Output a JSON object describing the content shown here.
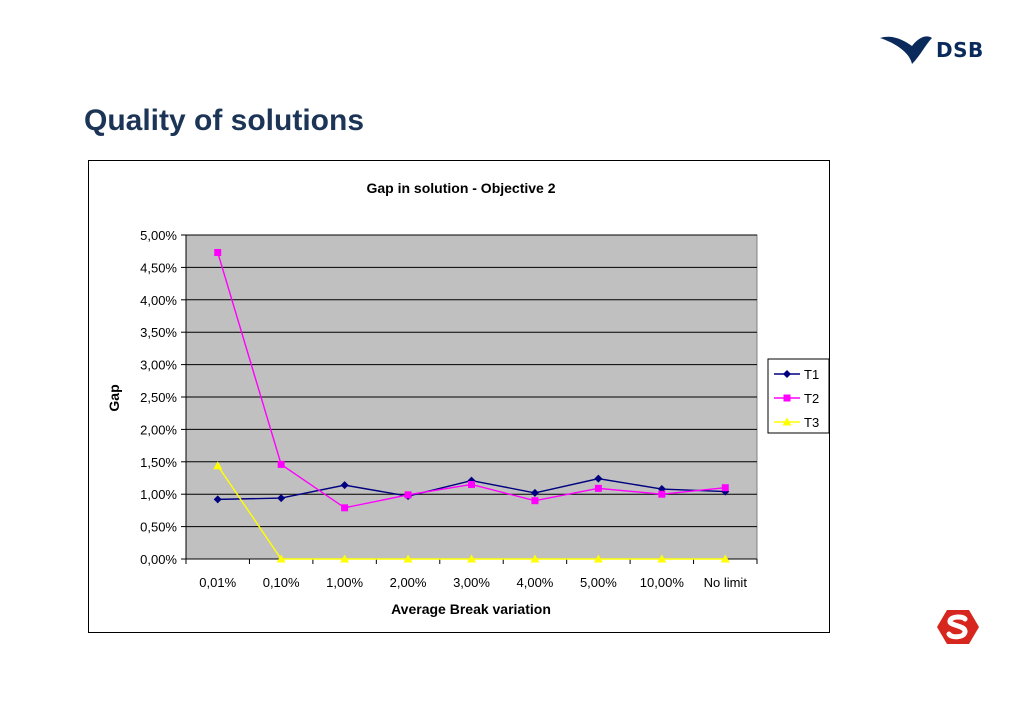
{
  "brand": {
    "name": "DSB"
  },
  "slide": {
    "title": "Quality of solutions"
  },
  "chart_data": {
    "type": "line",
    "title": "Gap in solution - Objective 2",
    "xlabel": "Average Break variation",
    "ylabel": "Gap",
    "categories": [
      "0,01%",
      "0,10%",
      "1,00%",
      "2,00%",
      "3,00%",
      "4,00%",
      "5,00%",
      "10,00%",
      "No limit"
    ],
    "ylim": [
      0,
      5
    ],
    "yticks": [
      0,
      0.5,
      1,
      1.5,
      2,
      2.5,
      3,
      3.5,
      4,
      4.5,
      5
    ],
    "ytick_labels": [
      "0,00%",
      "0,50%",
      "1,00%",
      "1,50%",
      "2,00%",
      "2,50%",
      "3,00%",
      "3,50%",
      "4,00%",
      "4,50%",
      "5,00%"
    ],
    "grid": true,
    "legend_position": "right",
    "series": [
      {
        "name": "T1",
        "color": "#000080",
        "marker": "diamond",
        "values": [
          0.92,
          0.94,
          1.14,
          0.97,
          1.21,
          1.02,
          1.24,
          1.08,
          1.04
        ]
      },
      {
        "name": "T2",
        "color": "#ff00ff",
        "marker": "square",
        "values": [
          4.73,
          1.46,
          0.79,
          0.99,
          1.15,
          0.9,
          1.09,
          1.0,
          1.1
        ]
      },
      {
        "name": "T3",
        "color": "#ffff00",
        "marker": "triangle",
        "values": [
          1.44,
          0.0,
          0.0,
          0.0,
          0.0,
          0.0,
          0.0,
          0.0,
          0.0
        ]
      }
    ]
  }
}
